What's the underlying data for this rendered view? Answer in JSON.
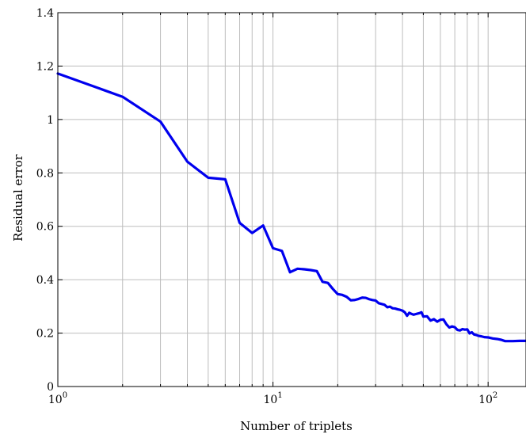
{
  "chart_data": {
    "type": "line",
    "title": "",
    "xlabel": "Number of triplets",
    "ylabel": "Residual error",
    "xscale": "log",
    "xlim": [
      1,
      150
    ],
    "ylim": [
      0,
      1.4
    ],
    "grid": "vertical log grid, horizontal at y ticks",
    "x_ticks": [
      {
        "value": 1,
        "base": "10",
        "exp": "0"
      },
      {
        "value": 10,
        "base": "10",
        "exp": "1"
      },
      {
        "value": 100,
        "base": "10",
        "exp": "2"
      }
    ],
    "y_ticks": [
      {
        "value": 0,
        "label": "0"
      },
      {
        "value": 0.2,
        "label": "0.2"
      },
      {
        "value": 0.4,
        "label": "0.4"
      },
      {
        "value": 0.6,
        "label": "0.6"
      },
      {
        "value": 0.8,
        "label": "0.8"
      },
      {
        "value": 1.0,
        "label": "1"
      },
      {
        "value": 1.2,
        "label": "1.2"
      },
      {
        "value": 1.4,
        "label": "1.4"
      }
    ],
    "series": [
      {
        "color": "#0000ee",
        "x": [
          1,
          2,
          3,
          4,
          5,
          6,
          7,
          8,
          9,
          10,
          11,
          12,
          13,
          14,
          15,
          16,
          17,
          18,
          19,
          20,
          21,
          22,
          23,
          24,
          25,
          26,
          27,
          28,
          29,
          30,
          31,
          32,
          33,
          34,
          35,
          36,
          37,
          38,
          39,
          40,
          41,
          42,
          43,
          44,
          45,
          46,
          47,
          48,
          49,
          50,
          52,
          54,
          56,
          58,
          60,
          62,
          64,
          66,
          68,
          70,
          72,
          74,
          76,
          78,
          80,
          82,
          84,
          86,
          88,
          90,
          93,
          96,
          100,
          105,
          110,
          115,
          120,
          130,
          140,
          150
        ],
        "y": [
          1.172,
          1.085,
          0.992,
          0.842,
          0.782,
          0.776,
          0.613,
          0.575,
          0.603,
          0.518,
          0.508,
          0.428,
          0.441,
          0.439,
          0.436,
          0.432,
          0.392,
          0.388,
          0.365,
          0.346,
          0.343,
          0.336,
          0.323,
          0.324,
          0.328,
          0.333,
          0.332,
          0.327,
          0.324,
          0.322,
          0.312,
          0.309,
          0.306,
          0.297,
          0.299,
          0.293,
          0.292,
          0.289,
          0.287,
          0.284,
          0.278,
          0.265,
          0.276,
          0.272,
          0.269,
          0.271,
          0.273,
          0.275,
          0.278,
          0.262,
          0.263,
          0.247,
          0.252,
          0.243,
          0.25,
          0.251,
          0.233,
          0.221,
          0.225,
          0.222,
          0.212,
          0.21,
          0.215,
          0.213,
          0.214,
          0.199,
          0.203,
          0.195,
          0.193,
          0.19,
          0.188,
          0.185,
          0.184,
          0.18,
          0.178,
          0.175,
          0.17,
          0.17,
          0.171,
          0.171
        ]
      }
    ]
  }
}
